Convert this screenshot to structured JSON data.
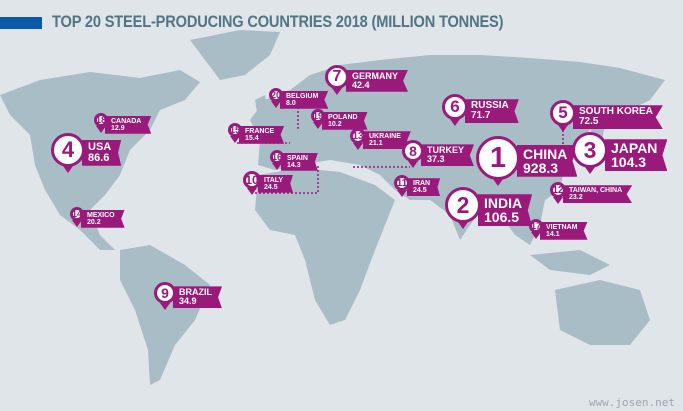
{
  "title": "TOP 20 STEEL-PRODUCING COUNTRIES 2018 (MILLION TONNES)",
  "colors": {
    "accent": "#9a1a7c",
    "title_bar": "#0a5aa8",
    "land": "#a9bdc7",
    "sea": "#dfe5e8"
  },
  "countries": [
    {
      "rank": "1",
      "name": "CHINA",
      "value": "928.3"
    },
    {
      "rank": "2",
      "name": "INDIA",
      "value": "106.5"
    },
    {
      "rank": "3",
      "name": "JAPAN",
      "value": "104.3"
    },
    {
      "rank": "4",
      "name": "USA",
      "value": "86.6"
    },
    {
      "rank": "5",
      "name": "SOUTH KOREA",
      "value": "72.5"
    },
    {
      "rank": "6",
      "name": "RUSSIA",
      "value": "71.7"
    },
    {
      "rank": "7",
      "name": "GERMANY",
      "value": "42.4"
    },
    {
      "rank": "8",
      "name": "TURKEY",
      "value": "37.3"
    },
    {
      "rank": "9",
      "name": "BRAZIL",
      "value": "34.9"
    },
    {
      "rank": "10",
      "name": "ITALY",
      "value": "24.5"
    },
    {
      "rank": "11",
      "name": "IRAN",
      "value": "24.5"
    },
    {
      "rank": "12",
      "name": "TAIWAN, CHINA",
      "value": "23.2"
    },
    {
      "rank": "13",
      "name": "UKRAINE",
      "value": "21.1"
    },
    {
      "rank": "14",
      "name": "MEXICO",
      "value": "20.2"
    },
    {
      "rank": "15",
      "name": "FRANCE",
      "value": "15.4"
    },
    {
      "rank": "16",
      "name": "SPAIN",
      "value": "14.3"
    },
    {
      "rank": "17",
      "name": "VIETNAM",
      "value": "14.1"
    },
    {
      "rank": "18",
      "name": "CANADA",
      "value": "12.9"
    },
    {
      "rank": "19",
      "name": "POLAND",
      "value": "10.2"
    },
    {
      "rank": "20",
      "name": "BELGIUM",
      "value": "8.0"
    }
  ],
  "watermark": "www.josen.net"
}
